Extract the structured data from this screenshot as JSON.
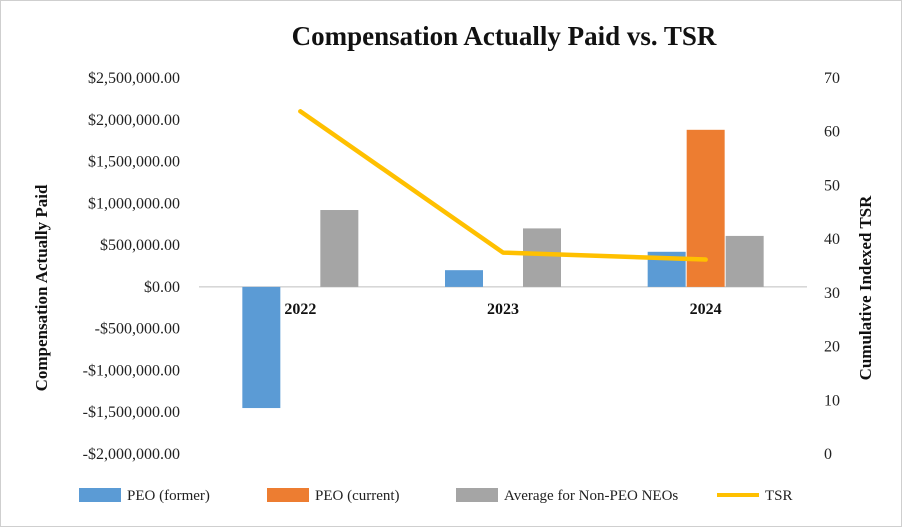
{
  "chart_data": {
    "type": "bar",
    "title": "Compensation Actually Paid vs. TSR",
    "xlabel": "",
    "ylabel": "Compensation Actually Paid",
    "y2label": "Cumulative Indexed TSR",
    "categories": [
      "2022",
      "2023",
      "2024"
    ],
    "ylim": [
      -2000000,
      2500000
    ],
    "y2lim": [
      0,
      70
    ],
    "y_ticks": [
      2500000,
      2000000,
      1500000,
      1000000,
      500000,
      0,
      -500000,
      -1000000,
      -1500000,
      -2000000
    ],
    "y_tick_labels": [
      "$2,500,000.00",
      "$2,000,000.00",
      "$1,500,000.00",
      "$1,000,000.00",
      "$500,000.00",
      "$0.00",
      "-$500,000.00",
      "-$1,000,000.00",
      "-$1,500,000.00",
      "-$2,000,000.00"
    ],
    "y2_ticks": [
      70,
      60,
      50,
      40,
      30,
      20,
      10,
      0
    ],
    "y2_tick_labels": [
      "70",
      "60",
      "50",
      "40",
      "30",
      "20",
      "10",
      "0"
    ],
    "series": [
      {
        "name": "PEO (former)",
        "kind": "bar",
        "color": "#5b9bd5",
        "values": [
          -1450000,
          200000,
          420000
        ]
      },
      {
        "name": "PEO (current)",
        "kind": "bar",
        "color": "#ed7d31",
        "values": [
          null,
          null,
          1880000
        ]
      },
      {
        "name": "Average for Non-PEO NEOs",
        "kind": "bar",
        "color": "#a5a5a5",
        "values": [
          920000,
          700000,
          610000
        ]
      },
      {
        "name": "TSR",
        "kind": "line",
        "axis": "secondary",
        "color": "#ffc000",
        "values": [
          63.8,
          37.5,
          36.2
        ]
      }
    ],
    "legend_position": "bottom",
    "grid": false
  }
}
